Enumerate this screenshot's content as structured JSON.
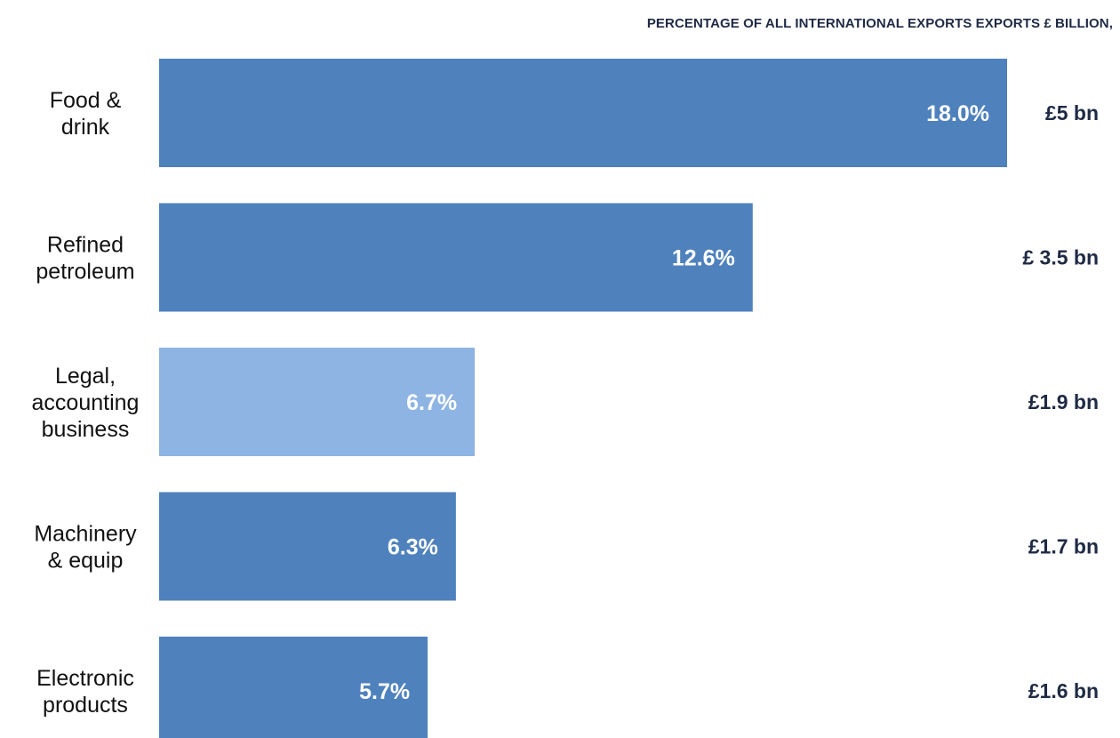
{
  "header": {
    "title": "PERCENTAGE OF ALL INTERNATIONAL EXPORTS EXPORTS £ BILLION,"
  },
  "colors": {
    "bar": "#4f81bd",
    "bar_highlight": "#8eb4e3",
    "bar_text": "#ffffff",
    "value_text": "#1f2a44"
  },
  "chart_data": {
    "type": "bar",
    "orientation": "horizontal",
    "title": "PERCENTAGE OF ALL INTERNATIONAL EXPORTS EXPORTS £ BILLION,",
    "categories": [
      [
        "Food &",
        "drink"
      ],
      [
        "Refined",
        "petroleum"
      ],
      [
        "Legal,",
        "accounting",
        "business"
      ],
      [
        "Machinery",
        "& equip"
      ],
      [
        "Electronic",
        "products"
      ]
    ],
    "values": [
      18.0,
      12.6,
      6.7,
      6.3,
      5.7
    ],
    "bar_labels": [
      "18.0%",
      "12.6%",
      "6.7%",
      "6.3%",
      "5.7%"
    ],
    "export_values": [
      "£5 bn",
      "£ 3.5 bn",
      "£1.9 bn",
      "£1.7 bn",
      "£1.6 bn"
    ],
    "highlight_index": 2,
    "xlim": [
      0,
      18.0
    ],
    "grid": false,
    "legend": "none"
  }
}
